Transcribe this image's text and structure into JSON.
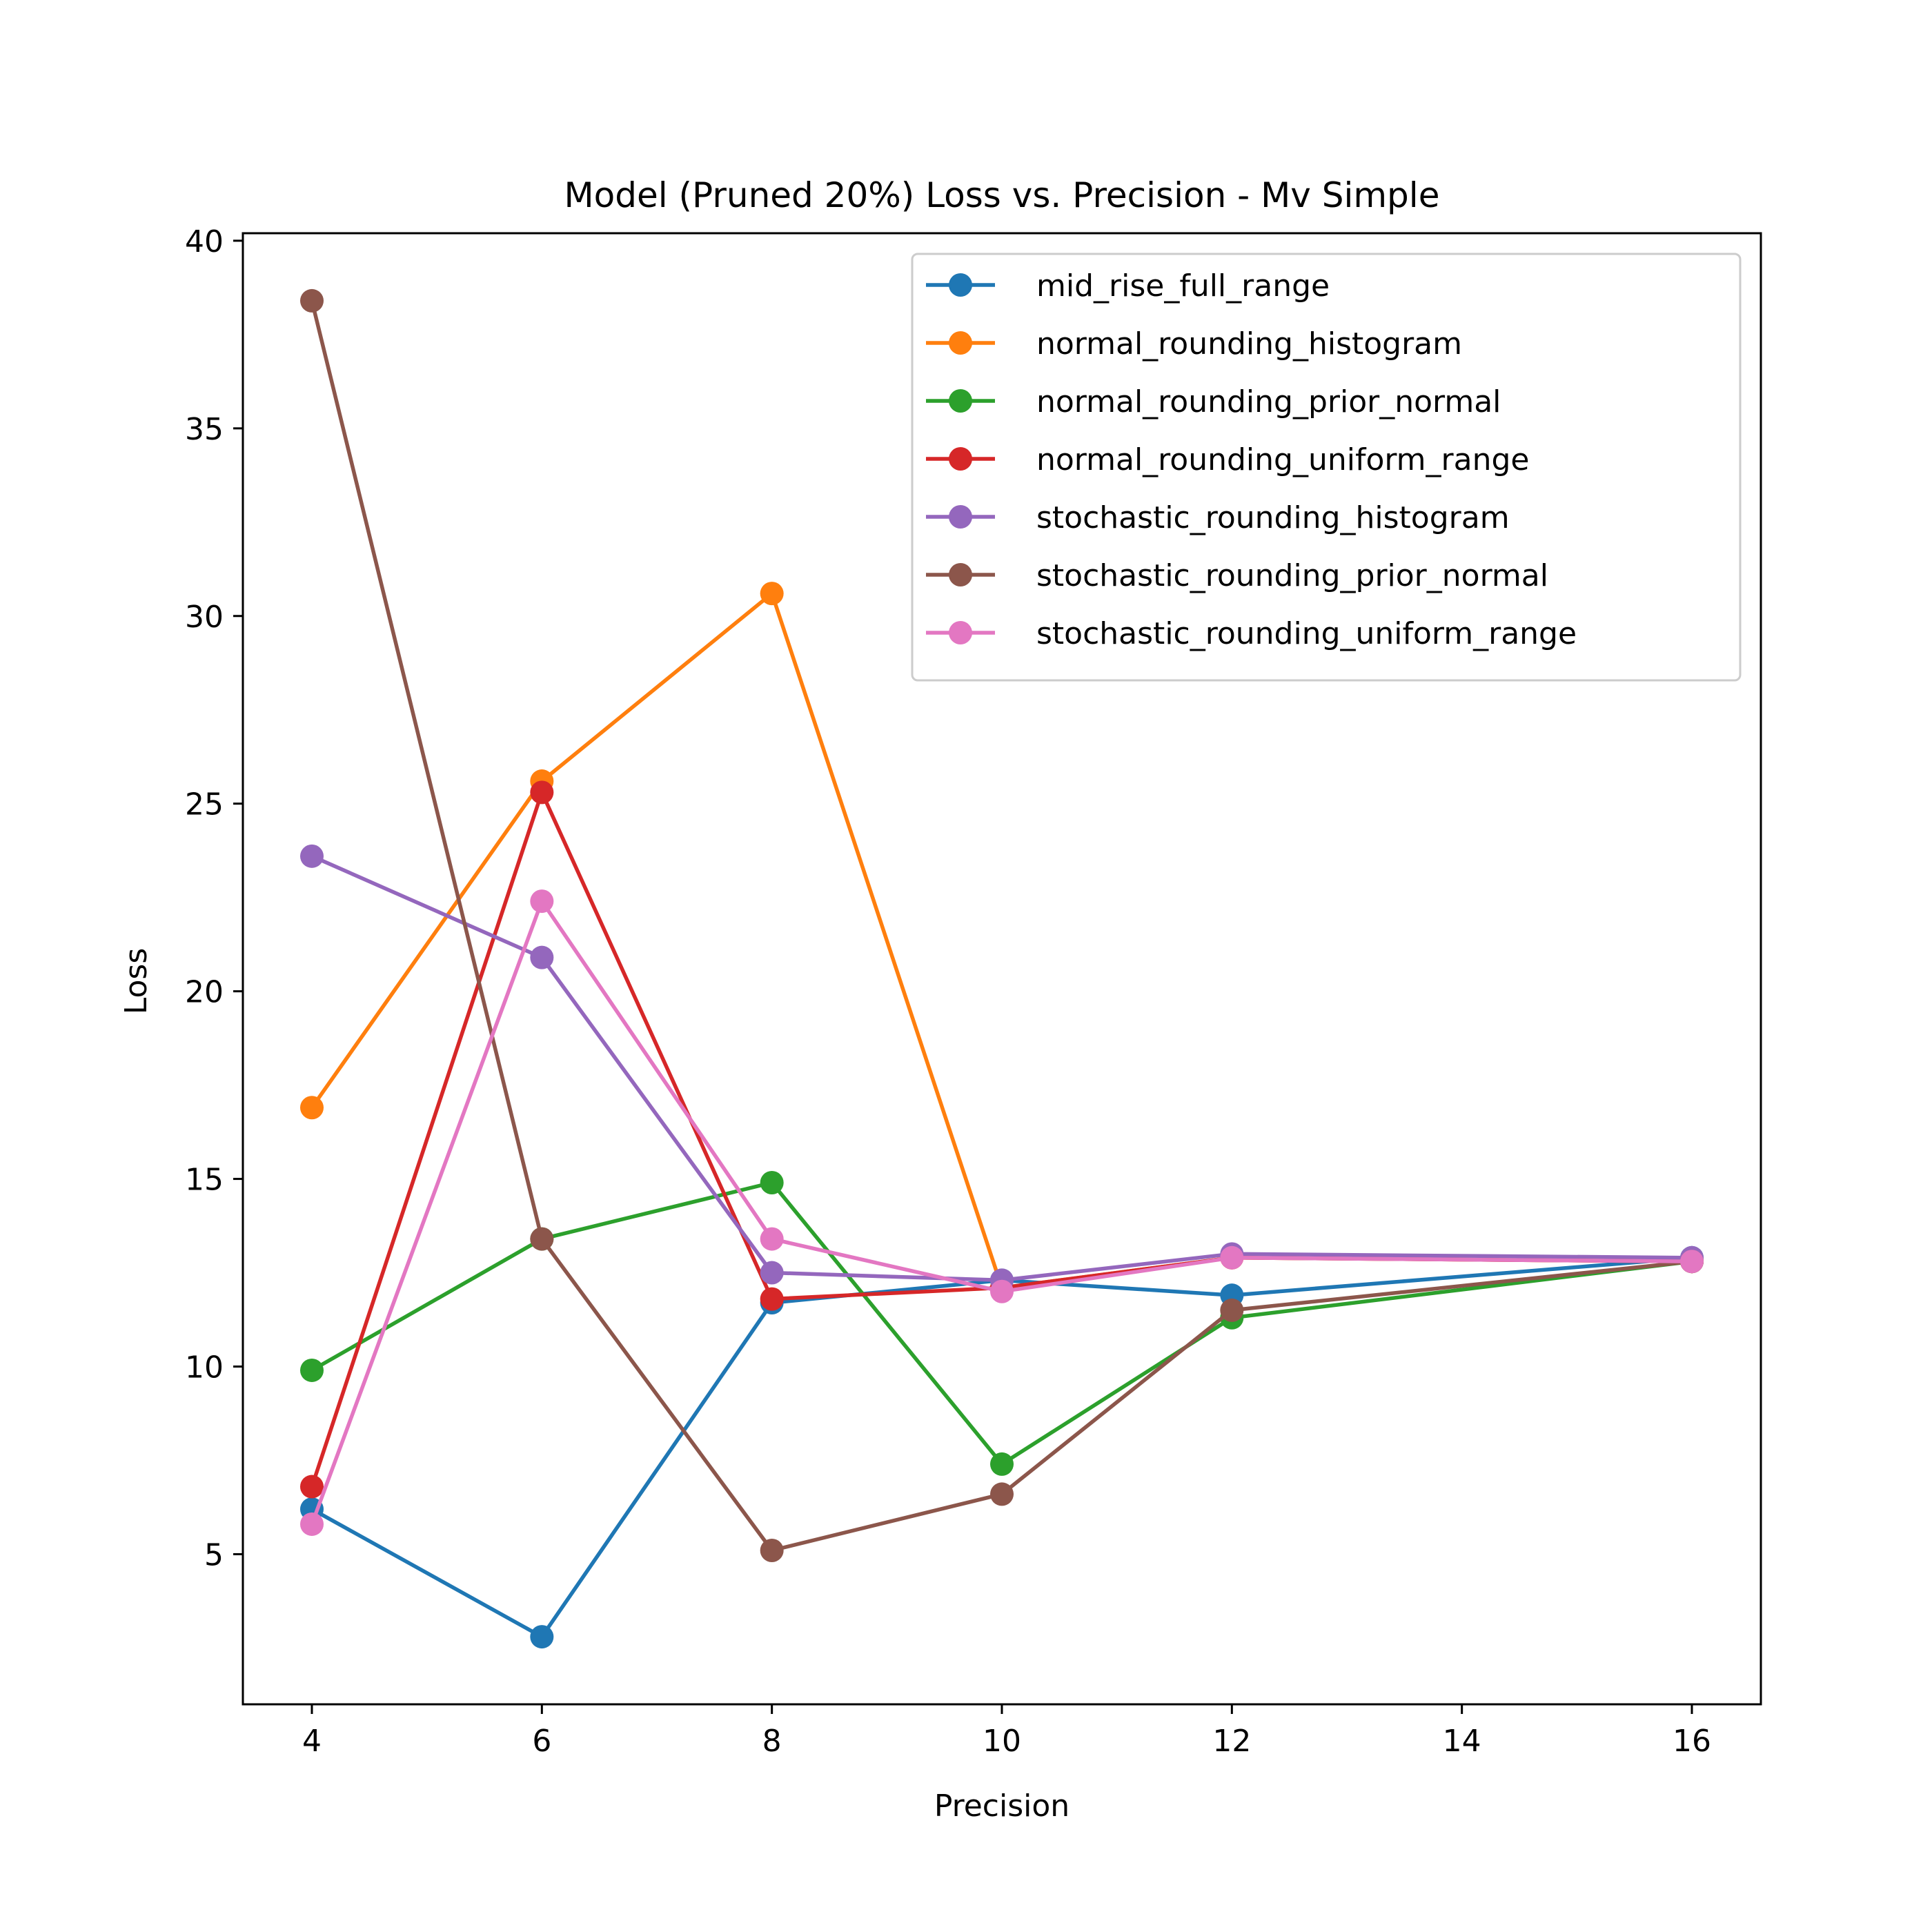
{
  "chart_data": {
    "type": "line",
    "title": "Model (Pruned 20%) Loss vs. Precision - Mv Simple",
    "xlabel": "Precision",
    "ylabel": "Loss",
    "xlim": [
      3.4,
      16.6
    ],
    "ylim": [
      1.0,
      40.2
    ],
    "xticks": [
      4,
      6,
      8,
      10,
      12,
      14,
      16
    ],
    "yticks": [
      5,
      10,
      15,
      20,
      25,
      30,
      35,
      40
    ],
    "grid": false,
    "legend_position": "upper right",
    "series": [
      {
        "name": "mid_rise_full_range",
        "color": "#1f77b4",
        "x": [
          4,
          6,
          8,
          10,
          12,
          16
        ],
        "y": [
          6.2,
          2.8,
          11.7,
          12.3,
          11.9,
          12.9
        ]
      },
      {
        "name": "normal_rounding_histogram",
        "color": "#ff7f0e",
        "x": [
          4,
          6,
          8,
          10,
          12,
          16
        ],
        "y": [
          16.9,
          25.6,
          30.6,
          12.1,
          12.9,
          12.8
        ]
      },
      {
        "name": "normal_rounding_prior_normal",
        "color": "#2ca02c",
        "x": [
          4,
          6,
          8,
          10,
          12,
          16
        ],
        "y": [
          9.9,
          13.4,
          14.9,
          7.4,
          11.3,
          12.8
        ]
      },
      {
        "name": "normal_rounding_uniform_range",
        "color": "#d62728",
        "x": [
          4,
          6,
          8,
          10,
          12,
          16
        ],
        "y": [
          6.8,
          25.3,
          11.8,
          12.1,
          12.9,
          12.8
        ]
      },
      {
        "name": "stochastic_rounding_histogram",
        "color": "#9467bd",
        "x": [
          4,
          6,
          8,
          10,
          12,
          16
        ],
        "y": [
          23.6,
          20.9,
          12.5,
          12.3,
          13.0,
          12.9
        ]
      },
      {
        "name": "stochastic_rounding_prior_normal",
        "color": "#8c564b",
        "x": [
          4,
          6,
          8,
          10,
          12,
          16
        ],
        "y": [
          38.4,
          13.4,
          5.1,
          6.6,
          11.5,
          12.8
        ]
      },
      {
        "name": "stochastic_rounding_uniform_range",
        "color": "#e377c2",
        "x": [
          4,
          6,
          8,
          10,
          12,
          16
        ],
        "y": [
          5.8,
          22.4,
          13.4,
          12.0,
          12.9,
          12.8
        ]
      }
    ]
  }
}
